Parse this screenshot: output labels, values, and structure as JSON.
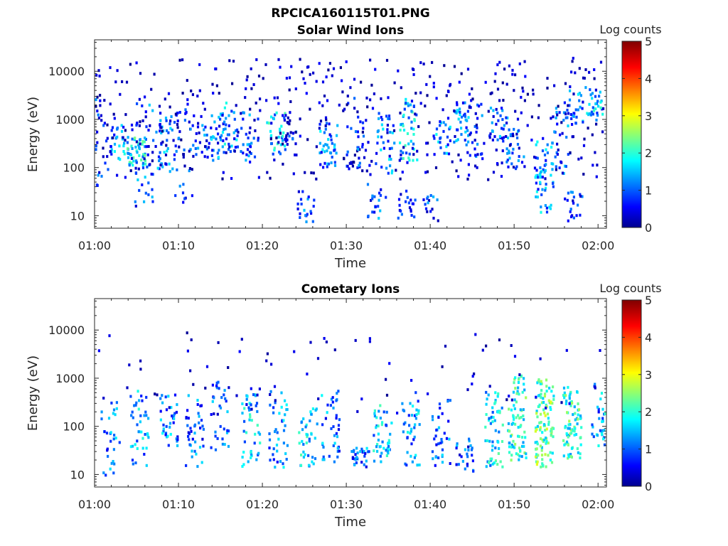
{
  "figure": {
    "title": "RPCICA160115T01.PNG"
  },
  "chart_data": [
    {
      "type": "heatmap",
      "title": "Solar Wind Ions",
      "xlabel": "Time",
      "ylabel": "Energy (eV)",
      "x_ticks": [
        "01:00",
        "01:10",
        "01:20",
        "01:30",
        "01:40",
        "01:50",
        "02:00"
      ],
      "xlim": [
        "01:00",
        "02:01"
      ],
      "y_scale": "log",
      "y_ticks": [
        {
          "value": 10,
          "label": "10"
        },
        {
          "value": 100,
          "label": "100"
        },
        {
          "value": 1000,
          "label": "1000"
        },
        {
          "value": 10000,
          "label": "10000"
        }
      ],
      "ylim": [
        5.5,
        45000
      ],
      "colorbar": {
        "label": "Log counts",
        "range": [
          0,
          5
        ],
        "ticks": [
          "0",
          "1",
          "2",
          "3",
          "4",
          "5"
        ],
        "colormap": "jet"
      },
      "clusters": [
        {
          "t": 1.0,
          "e_min": 40,
          "e_max": 3000,
          "n": 24,
          "c": 0.7
        },
        {
          "t": 2.8,
          "e_min": 150,
          "e_max": 800,
          "n": 30,
          "c": 1.4
        },
        {
          "t": 4.9,
          "e_min": 120,
          "e_max": 450,
          "n": 45,
          "c": 1.8
        },
        {
          "t": 5.8,
          "e_min": 15,
          "e_max": 3000,
          "n": 35,
          "c": 1.0
        },
        {
          "t": 8.3,
          "e_min": 80,
          "e_max": 1500,
          "n": 40,
          "c": 1.1
        },
        {
          "t": 10.5,
          "e_min": 20,
          "e_max": 2000,
          "n": 30,
          "c": 0.8
        },
        {
          "t": 12.2,
          "e_min": 200,
          "e_max": 1500,
          "n": 20,
          "c": 0.9
        },
        {
          "t": 14.8,
          "e_min": 150,
          "e_max": 1500,
          "n": 35,
          "c": 1.1
        },
        {
          "t": 15.9,
          "e_min": 200,
          "e_max": 2500,
          "n": 25,
          "c": 1.4
        },
        {
          "t": 18.3,
          "e_min": 150,
          "e_max": 2000,
          "n": 25,
          "c": 1.0
        },
        {
          "t": 21.5,
          "e_min": 200,
          "e_max": 1500,
          "n": 30,
          "c": 1.6
        },
        {
          "t": 23.3,
          "e_min": 300,
          "e_max": 1500,
          "n": 20,
          "c": 0.7
        },
        {
          "t": 25.0,
          "e_min": 8,
          "e_max": 40,
          "n": 20,
          "c": 1.0
        },
        {
          "t": 27.8,
          "e_min": 100,
          "e_max": 1000,
          "n": 40,
          "c": 1.2
        },
        {
          "t": 31.0,
          "e_min": 100,
          "e_max": 3000,
          "n": 30,
          "c": 0.8
        },
        {
          "t": 33.5,
          "e_min": 8,
          "e_max": 50,
          "n": 20,
          "c": 1.0
        },
        {
          "t": 34.5,
          "e_min": 80,
          "e_max": 1500,
          "n": 35,
          "c": 1.2
        },
        {
          "t": 37.3,
          "e_min": 150,
          "e_max": 3000,
          "n": 45,
          "c": 1.6
        },
        {
          "t": 37.0,
          "e_min": 8,
          "e_max": 40,
          "n": 20,
          "c": 1.0
        },
        {
          "t": 40.0,
          "e_min": 8,
          "e_max": 30,
          "n": 15,
          "c": 0.9
        },
        {
          "t": 41.2,
          "e_min": 200,
          "e_max": 1000,
          "n": 25,
          "c": 1.3
        },
        {
          "t": 43.8,
          "e_min": 300,
          "e_max": 2500,
          "n": 30,
          "c": 1.2
        },
        {
          "t": 45.0,
          "e_min": 150,
          "e_max": 3000,
          "n": 25,
          "c": 0.9
        },
        {
          "t": 48.0,
          "e_min": 300,
          "e_max": 2000,
          "n": 25,
          "c": 1.1
        },
        {
          "t": 50.0,
          "e_min": 100,
          "e_max": 800,
          "n": 30,
          "c": 1.0
        },
        {
          "t": 53.5,
          "e_min": 12,
          "e_max": 400,
          "n": 55,
          "c": 1.3
        },
        {
          "t": 55.5,
          "e_min": 80,
          "e_max": 3000,
          "n": 30,
          "c": 1.0
        },
        {
          "t": 57.0,
          "e_min": 800,
          "e_max": 5000,
          "n": 25,
          "c": 1.3
        },
        {
          "t": 59.5,
          "e_min": 1000,
          "e_max": 5000,
          "n": 30,
          "c": 1.5
        },
        {
          "t": 57.0,
          "e_min": 8,
          "e_max": 40,
          "n": 20,
          "c": 0.8
        }
      ],
      "background_points": 450,
      "background_e_range": [
        60,
        20000
      ]
    },
    {
      "type": "heatmap",
      "title": "Cometary Ions",
      "xlabel": "Time",
      "ylabel": "Energy (eV)",
      "x_ticks": [
        "01:00",
        "01:10",
        "01:20",
        "01:30",
        "01:40",
        "01:50",
        "02:00"
      ],
      "xlim": [
        "01:00",
        "02:01"
      ],
      "y_scale": "log",
      "y_ticks": [
        {
          "value": 10,
          "label": "10"
        },
        {
          "value": 100,
          "label": "100"
        },
        {
          "value": 1000,
          "label": "1000"
        },
        {
          "value": 10000,
          "label": "10000"
        }
      ],
      "ylim": [
        5.5,
        45000
      ],
      "colorbar": {
        "label": "Log counts",
        "range": [
          0,
          5
        ],
        "ticks": [
          "0",
          "1",
          "2",
          "3",
          "4",
          "5"
        ],
        "colormap": "jet"
      },
      "clusters": [
        {
          "t": 1.8,
          "e_min": 10,
          "e_max": 400,
          "n": 30,
          "c": 1.2
        },
        {
          "t": 5.2,
          "e_min": 15,
          "e_max": 600,
          "n": 40,
          "c": 1.4
        },
        {
          "t": 8.8,
          "e_min": 40,
          "e_max": 500,
          "n": 35,
          "c": 1.2
        },
        {
          "t": 11.8,
          "e_min": 15,
          "e_max": 500,
          "n": 40,
          "c": 1.1
        },
        {
          "t": 14.8,
          "e_min": 30,
          "e_max": 900,
          "n": 35,
          "c": 1.0
        },
        {
          "t": 18.5,
          "e_min": 15,
          "e_max": 500,
          "n": 45,
          "c": 1.6
        },
        {
          "t": 21.8,
          "e_min": 15,
          "e_max": 600,
          "n": 40,
          "c": 1.3
        },
        {
          "t": 25.3,
          "e_min": 15,
          "e_max": 250,
          "n": 40,
          "c": 1.6
        },
        {
          "t": 28.0,
          "e_min": 15,
          "e_max": 600,
          "n": 40,
          "c": 1.2
        },
        {
          "t": 31.5,
          "e_min": 15,
          "e_max": 40,
          "n": 30,
          "c": 1.1
        },
        {
          "t": 34.2,
          "e_min": 15,
          "e_max": 300,
          "n": 45,
          "c": 1.6
        },
        {
          "t": 37.5,
          "e_min": 15,
          "e_max": 600,
          "n": 40,
          "c": 1.4
        },
        {
          "t": 41.2,
          "e_min": 15,
          "e_max": 400,
          "n": 35,
          "c": 1.2
        },
        {
          "t": 44.0,
          "e_min": 12,
          "e_max": 60,
          "n": 25,
          "c": 1.0
        },
        {
          "t": 47.5,
          "e_min": 15,
          "e_max": 600,
          "n": 60,
          "c": 1.7
        },
        {
          "t": 50.2,
          "e_min": 20,
          "e_max": 1200,
          "n": 80,
          "c": 2.0
        },
        {
          "t": 53.5,
          "e_min": 15,
          "e_max": 1000,
          "n": 110,
          "c": 2.3
        },
        {
          "t": 56.8,
          "e_min": 20,
          "e_max": 800,
          "n": 80,
          "c": 2.0
        },
        {
          "t": 60.2,
          "e_min": 40,
          "e_max": 800,
          "n": 40,
          "c": 1.5
        }
      ],
      "background_points": 80,
      "background_e_range": [
        200,
        10000
      ]
    }
  ]
}
